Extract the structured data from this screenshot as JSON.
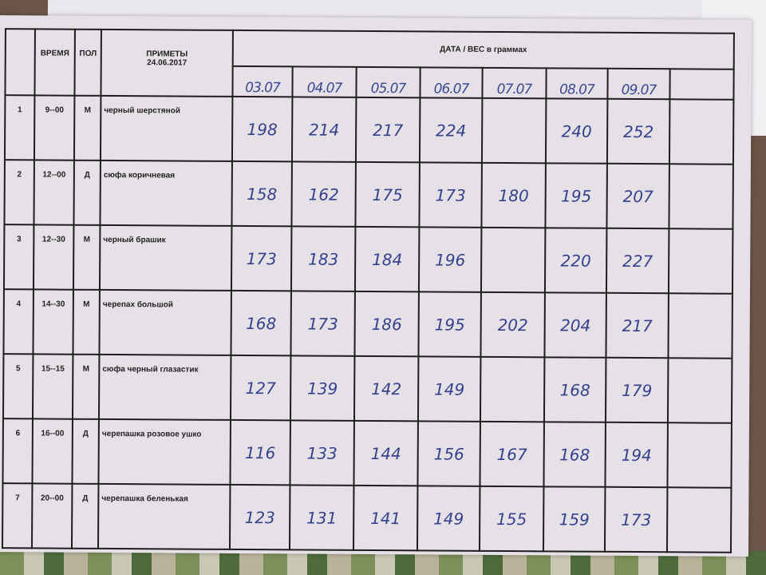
{
  "headers": {
    "num": "",
    "time": "ВРЕМЯ",
    "sex": "ПОЛ",
    "desc": "ПРИМЕТЫ",
    "desc_date": "24.06.2017",
    "dates_group": "ДАТА / ВЕС в граммах"
  },
  "dates": [
    "03.07",
    "04.07",
    "05.07",
    "06.07",
    "07.07",
    "08.07",
    "09.07",
    ""
  ],
  "rows": [
    {
      "num": "1",
      "time": "9--00",
      "sex": "М",
      "desc": "черный шерстяной",
      "weights": [
        "198",
        "214",
        "217",
        "224",
        "",
        "240",
        "252",
        ""
      ]
    },
    {
      "num": "2",
      "time": "12--00",
      "sex": "Д",
      "desc": "сюфа коричневая",
      "weights": [
        "158",
        "162",
        "175",
        "173",
        "180",
        "195",
        "207",
        ""
      ]
    },
    {
      "num": "3",
      "time": "12--30",
      "sex": "М",
      "desc": "черный брашик",
      "weights": [
        "173",
        "183",
        "184",
        "196",
        "",
        "220",
        "227",
        ""
      ]
    },
    {
      "num": "4",
      "time": "14--30",
      "sex": "М",
      "desc": "черепах большой",
      "weights": [
        "168",
        "173",
        "186",
        "195",
        "202",
        "204",
        "217",
        ""
      ]
    },
    {
      "num": "5",
      "time": "15--15",
      "sex": "М",
      "desc": "сюфа черный глазастик",
      "weights": [
        "127",
        "139",
        "142",
        "149",
        "",
        "168",
        "179",
        ""
      ]
    },
    {
      "num": "6",
      "time": "16--00",
      "sex": "Д",
      "desc": "черепашка розовое ушко",
      "weights": [
        "116",
        "133",
        "144",
        "156",
        "167",
        "168",
        "194",
        ""
      ]
    },
    {
      "num": "7",
      "time": "20--00",
      "sex": "Д",
      "desc": "черепашка беленькая",
      "weights": [
        "123",
        "131",
        "141",
        "149",
        "155",
        "159",
        "173",
        ""
      ]
    }
  ],
  "colors": {
    "ink": "#35418f",
    "paper": "#e6e1e6",
    "lines": "#1e1e1e"
  }
}
